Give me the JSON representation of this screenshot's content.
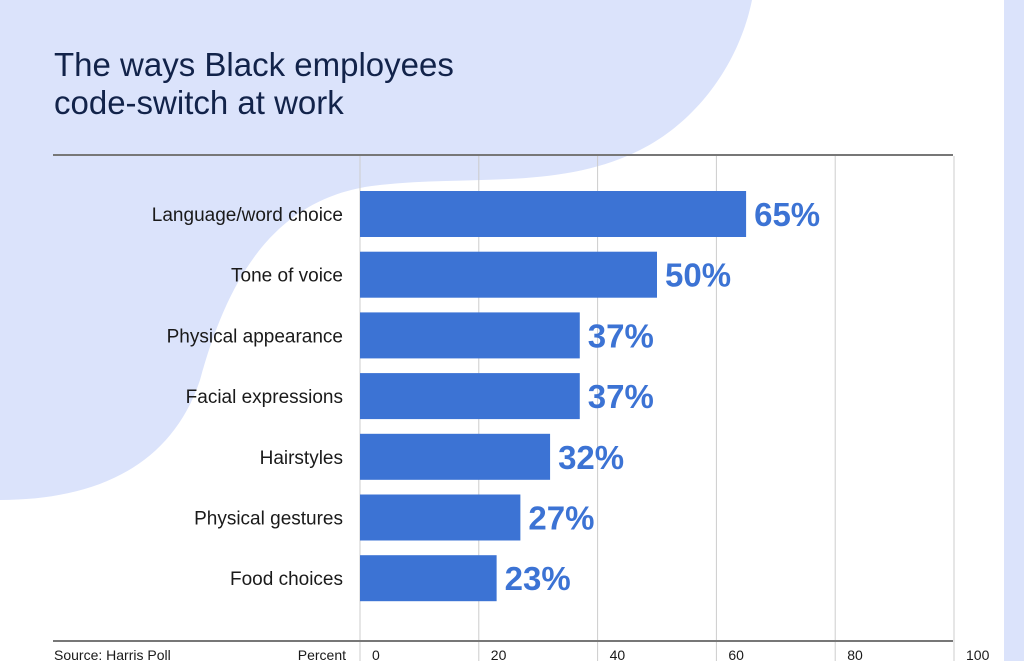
{
  "colors": {
    "bar": "#3c73d4",
    "background_shape": "#dbe3fb",
    "title": "#12234a"
  },
  "chart_data": {
    "type": "bar",
    "orientation": "horizontal",
    "title": "The ways Black employees code-switch at work",
    "categories": [
      "Language/word choice",
      "Tone of voice",
      "Physical appearance",
      "Facial expressions",
      "Hairstyles",
      "Physical gestures",
      "Food choices"
    ],
    "values": [
      65,
      50,
      37,
      37,
      32,
      27,
      23
    ],
    "value_labels": [
      "65%",
      "50%",
      "37%",
      "37%",
      "32%",
      "27%",
      "23%"
    ],
    "xlabel": "Percent",
    "xlim": [
      0,
      100
    ],
    "xticks": [
      "0",
      "20",
      "40",
      "60",
      "80",
      "100"
    ],
    "grid": true,
    "source": "Source: Harris Poll"
  }
}
